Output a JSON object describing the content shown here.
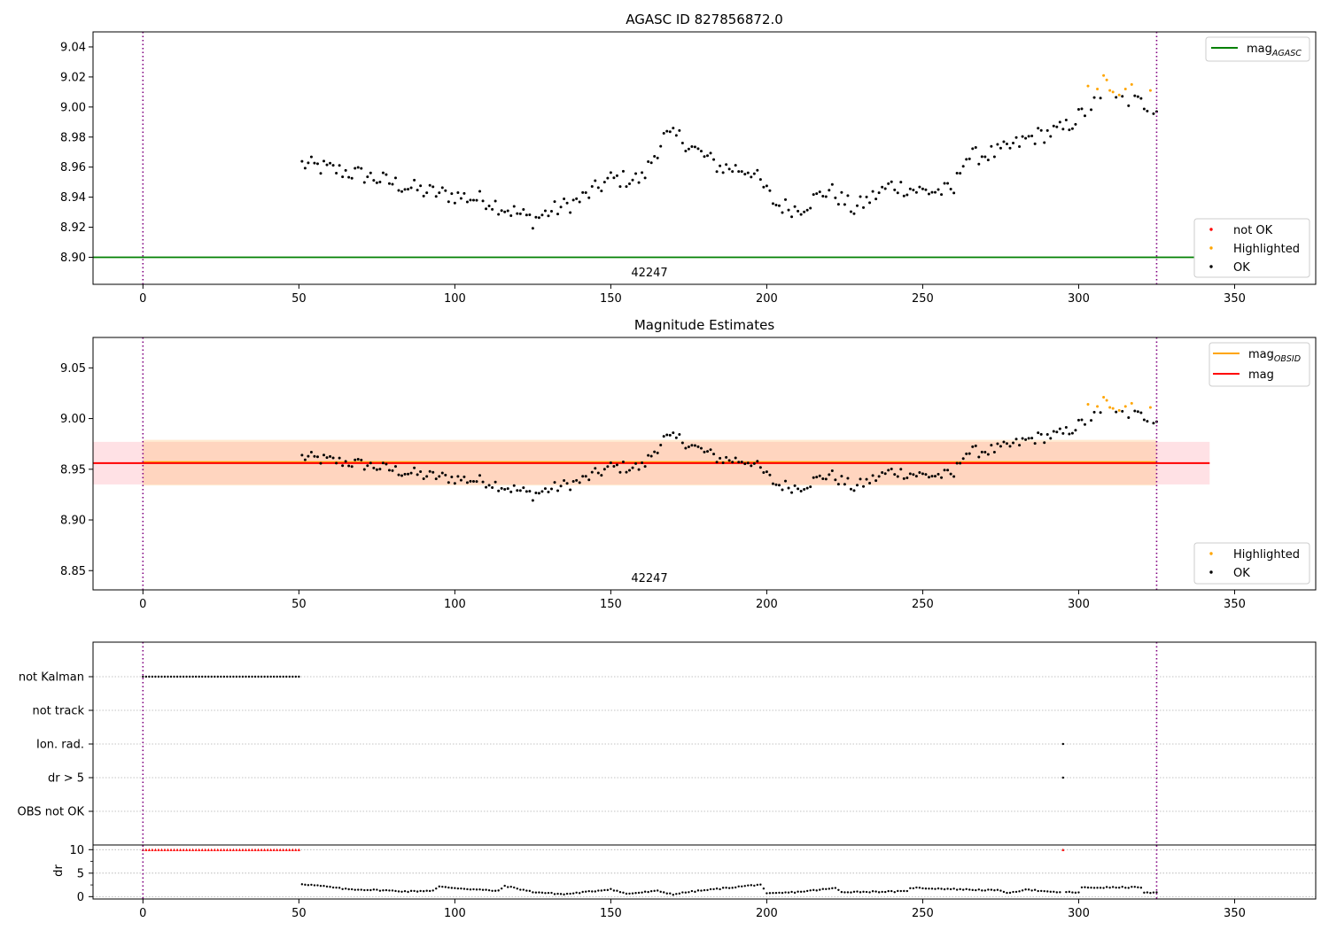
{
  "chart_data": [
    {
      "type": "scatter",
      "title": "AGASC ID 827856872.0",
      "xlim": [
        -16,
        376
      ],
      "ylim": [
        8.882,
        9.05
      ],
      "xticks": [
        0,
        50,
        100,
        150,
        200,
        250,
        300,
        350
      ],
      "yticks": [
        8.9,
        8.92,
        8.94,
        8.96,
        8.98,
        9.0,
        9.02,
        9.04
      ],
      "ytick_labels": [
        "8.90",
        "8.92",
        "8.94",
        "8.96",
        "8.98",
        "9.00",
        "9.02",
        "9.04"
      ],
      "obs_boundaries": [
        0,
        325
      ],
      "obs_label": "42247",
      "lines": [
        {
          "name": "mag_AGASC",
          "label_base": "mag",
          "label_sub": "AGASC",
          "y": 8.9,
          "x_range": [
            -16,
            342
          ],
          "color": "#008000"
        }
      ],
      "legend_top": [
        {
          "kind": "line",
          "label_base": "mag",
          "label_sub": "AGASC",
          "color": "#008000"
        }
      ],
      "legend_bottom": [
        {
          "kind": "dot",
          "label": "not OK",
          "color": "#ff0000"
        },
        {
          "kind": "dot",
          "label": "Highlighted",
          "color": "#ffa500"
        },
        {
          "kind": "dot",
          "label": "OK",
          "color": "#000000"
        }
      ],
      "series": [
        {
          "name": "OK",
          "color": "#000000",
          "x_start": 51,
          "x_step": 1,
          "trend": [
            [
              51,
              8.962
            ],
            [
              70,
              8.955
            ],
            [
              90,
              8.944
            ],
            [
              110,
              8.938
            ],
            [
              125,
              8.925
            ],
            [
              130,
              8.93
            ],
            [
              140,
              8.938
            ],
            [
              150,
              8.952
            ],
            [
              160,
              8.952
            ],
            [
              167,
              8.98
            ],
            [
              172,
              8.98
            ],
            [
              178,
              8.97
            ],
            [
              185,
              8.96
            ],
            [
              195,
              8.958
            ],
            [
              203,
              8.935
            ],
            [
              210,
              8.932
            ],
            [
              220,
              8.945
            ],
            [
              228,
              8.932
            ],
            [
              240,
              8.948
            ],
            [
              250,
              8.944
            ],
            [
              260,
              8.944
            ],
            [
              263,
              8.966
            ],
            [
              275,
              8.97
            ],
            [
              285,
              8.98
            ],
            [
              295,
              8.985
            ],
            [
              305,
              9.002
            ],
            [
              315,
              9.005
            ],
            [
              325,
              9.0
            ]
          ],
          "noise": 0.006
        },
        {
          "name": "Highlighted",
          "color": "#ffa500",
          "x": [
            303,
            306,
            308,
            309,
            310,
            311,
            313,
            315,
            317,
            323
          ],
          "y": [
            9.014,
            9.012,
            9.021,
            9.018,
            9.011,
            9.01,
            9.008,
            9.012,
            9.015,
            9.011
          ]
        }
      ]
    },
    {
      "type": "scatter",
      "title": "Magnitude Estimates",
      "xlim": [
        -16,
        376
      ],
      "ylim": [
        8.831,
        9.08
      ],
      "xticks": [
        0,
        50,
        100,
        150,
        200,
        250,
        300,
        350
      ],
      "yticks": [
        8.85,
        8.9,
        8.95,
        9.0,
        9.05
      ],
      "ytick_labels": [
        "8.85",
        "8.90",
        "8.95",
        "9.00",
        "9.05"
      ],
      "obs_boundaries": [
        0,
        325
      ],
      "obs_label": "42247",
      "bands": [
        {
          "name": "mag_band",
          "x_range": [
            -16,
            342
          ],
          "y_range": [
            8.935,
            8.977
          ],
          "color": "#ff9aa8"
        },
        {
          "name": "mag_OBSID_band",
          "x_range": [
            0,
            325
          ],
          "y_range": [
            8.934,
            8.979
          ],
          "color": "#ffb866"
        }
      ],
      "lines": [
        {
          "name": "mag_OBSID",
          "label_base": "mag",
          "label_sub": "OBSID",
          "y": 8.957,
          "x_range": [
            0,
            325
          ],
          "color": "#ffa500"
        },
        {
          "name": "mag",
          "label_base": "mag",
          "label_sub": "",
          "y": 8.956,
          "x_range": [
            -16,
            342
          ],
          "color": "#ff0000"
        }
      ],
      "legend_top": [
        {
          "kind": "line",
          "label_base": "mag",
          "label_sub": "OBSID",
          "color": "#ffa500"
        },
        {
          "kind": "line",
          "label_base": "mag",
          "label_sub": "",
          "color": "#ff0000"
        }
      ],
      "legend_bottom": [
        {
          "kind": "dot",
          "label": "Highlighted",
          "color": "#ffa500"
        },
        {
          "kind": "dot",
          "label": "OK",
          "color": "#000000"
        }
      ],
      "series_ref": "same observations as panel 1"
    },
    {
      "type": "scatter",
      "title": "",
      "xlim": [
        -16,
        376
      ],
      "xticks": [
        0,
        50,
        100,
        150,
        200,
        250,
        300,
        350
      ],
      "obs_boundaries": [
        0,
        325
      ],
      "flag_rows": [
        "not Kalman",
        "not track",
        "Ion. rad.",
        "dr > 5",
        "OBS not OK"
      ],
      "flags": [
        {
          "row": "not Kalman",
          "x_range": [
            0,
            50
          ],
          "step": 1
        },
        {
          "row": "Ion. rad.",
          "x": [
            295
          ]
        },
        {
          "row": "dr > 5",
          "x": [
            295
          ]
        }
      ]
    },
    {
      "type": "scatter",
      "title": "",
      "ylabel": "dr",
      "xlim": [
        -16,
        376
      ],
      "ylim": [
        -0.5,
        11
      ],
      "xticks": [
        0,
        50,
        100,
        150,
        200,
        250,
        300,
        350
      ],
      "yticks": [
        0,
        5,
        10
      ],
      "ytick_labels": [
        "0",
        "5",
        "10"
      ],
      "obs_boundaries": [
        0,
        325
      ],
      "series": [
        {
          "name": "dr_capped",
          "color": "#ff0000",
          "x_range": [
            0,
            50
          ],
          "y": 10,
          "extra_x": [
            295
          ]
        },
        {
          "name": "dr",
          "color": "#000000",
          "x_range": [
            51,
            325
          ],
          "trend": [
            [
              51,
              2.7
            ],
            [
              58,
              2.2
            ],
            [
              65,
              1.6
            ],
            [
              75,
              1.4
            ],
            [
              85,
              1.1
            ],
            [
              93,
              1.3
            ],
            [
              95,
              2.1
            ],
            [
              105,
              1.6
            ],
            [
              114,
              1.2
            ],
            [
              116,
              2.3
            ],
            [
              125,
              1.0
            ],
            [
              135,
              0.5
            ],
            [
              145,
              1.2
            ],
            [
              150,
              1.6
            ],
            [
              155,
              0.6
            ],
            [
              165,
              1.2
            ],
            [
              170,
              0.5
            ],
            [
              175,
              1.0
            ],
            [
              185,
              1.7
            ],
            [
              198,
              2.6
            ],
            [
              200,
              0.6
            ],
            [
              210,
              1.0
            ],
            [
              222,
              1.8
            ],
            [
              224,
              1.0
            ],
            [
              245,
              1.1
            ],
            [
              246,
              1.9
            ],
            [
              260,
              1.6
            ],
            [
              275,
              1.3
            ],
            [
              278,
              0.7
            ],
            [
              283,
              1.6
            ],
            [
              290,
              1.0
            ],
            [
              300,
              0.9
            ],
            [
              301,
              1.9
            ],
            [
              320,
              2.0
            ],
            [
              321,
              0.8
            ],
            [
              325,
              0.8
            ]
          ]
        }
      ]
    }
  ]
}
